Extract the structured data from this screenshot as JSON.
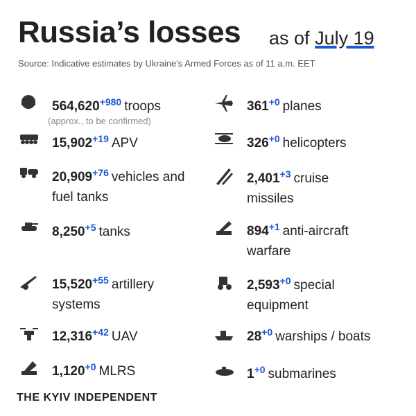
{
  "header": {
    "title": "Russia’s losses",
    "as_of": "as of",
    "date": "July 19",
    "source": "Source: Indicative estimates by Ukraine's Armed Forces as of 11 a.m. EET"
  },
  "items": [
    {
      "number": "564,620",
      "delta": "+980",
      "label": "troops",
      "note": "(approx., to be confirmed)"
    },
    {
      "number": "361",
      "delta": "+0",
      "label": "planes"
    },
    {
      "number": "15,902",
      "delta": "+19",
      "label": "APV"
    },
    {
      "number": "326",
      "delta": "+0",
      "label": "helicopters"
    },
    {
      "number": "20,909",
      "delta": "+76",
      "label": "vehicles and fuel tanks"
    },
    {
      "number": "2,401",
      "delta": "+3",
      "label": "cruise missiles"
    },
    {
      "number": "8,250",
      "delta": "+5",
      "label": "tanks"
    },
    {
      "number": "894",
      "delta": "+1",
      "label": "anti-aircraft warfare"
    },
    {
      "number": "15,520",
      "delta": "+55",
      "label": "artillery systems"
    },
    {
      "number": "2,593",
      "delta": "+0",
      "label": "special equipment"
    },
    {
      "number": "12,316",
      "delta": "+42",
      "label": "UAV"
    },
    {
      "number": "28",
      "delta": "+0",
      "label": "warships / boats"
    },
    {
      "number": "1,120",
      "delta": "+0",
      "label": "MLRS"
    },
    {
      "number": "1",
      "delta": "+0",
      "label": "submarines"
    }
  ],
  "footer": {
    "brand": "THE KYIV INDEPENDENT"
  }
}
